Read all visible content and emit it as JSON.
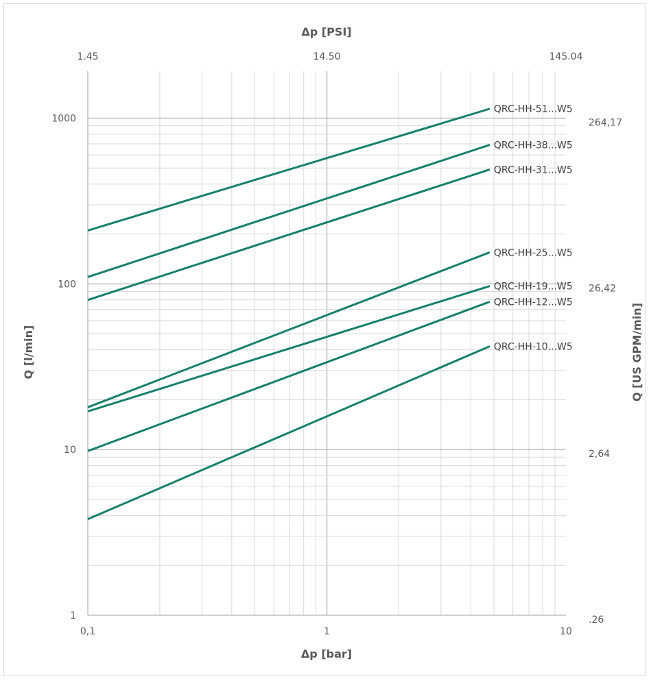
{
  "chart_data": {
    "type": "line",
    "title": "",
    "xlabel": "Δp [bar]",
    "ylabel": "Q [l/min]",
    "x2label": "Δp [PSI]",
    "y2label": "Q [US GPM/min]",
    "xscale": "log",
    "yscale": "log",
    "xlim": [
      0.1,
      10
    ],
    "ylim": [
      1,
      1920
    ],
    "grid": true,
    "legend": "none (series labelled at line ends)",
    "line_color": "#17806b",
    "x_ticks": [
      {
        "v": 0.1,
        "label": "0,1"
      },
      {
        "v": 1,
        "label": "1"
      },
      {
        "v": 10,
        "label": "10"
      }
    ],
    "y_ticks": [
      {
        "v": 1,
        "label": "1"
      },
      {
        "v": 10,
        "label": "10"
      },
      {
        "v": 100,
        "label": "100"
      },
      {
        "v": 1000,
        "label": "1000"
      }
    ],
    "x2_ticks": [
      {
        "v": 0.1,
        "label": "1.45"
      },
      {
        "v": 1,
        "label": "14.50"
      },
      {
        "v": 10,
        "label": "145.04"
      }
    ],
    "y2_ticks": [
      {
        "v": 1,
        "label": ".26"
      },
      {
        "v": 10,
        "label": "2,64"
      },
      {
        "v": 100,
        "label": "26,42"
      },
      {
        "v": 1000,
        "label": "264,17"
      }
    ],
    "series": [
      {
        "name": "QRC-HH-51...W5",
        "x": [
          0.1,
          4.8
        ],
        "y": [
          210,
          1140
        ]
      },
      {
        "name": "QRC-HH-38...W5",
        "x": [
          0.1,
          4.8
        ],
        "y": [
          110,
          690
        ]
      },
      {
        "name": "QRC-HH-31...W5",
        "x": [
          0.1,
          4.8
        ],
        "y": [
          80,
          490
        ]
      },
      {
        "name": "QRC-HH-25...W5",
        "x": [
          0.1,
          4.8
        ],
        "y": [
          18,
          155
        ]
      },
      {
        "name": "QRC-HH-19...W5",
        "x": [
          0.1,
          4.8
        ],
        "y": [
          17,
          97
        ]
      },
      {
        "name": "QRC-HH-12...W5",
        "x": [
          0.1,
          4.8
        ],
        "y": [
          9.8,
          78
        ]
      },
      {
        "name": "QRC-HH-10...W5",
        "x": [
          0.1,
          4.8
        ],
        "y": [
          3.8,
          42
        ]
      }
    ]
  }
}
